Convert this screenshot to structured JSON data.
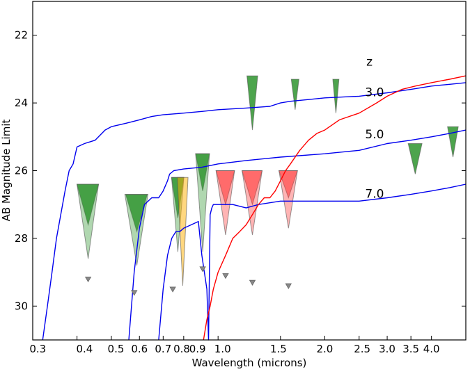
{
  "chart_data": {
    "type": "line",
    "title": "",
    "xlabel": "Wavelength (microns)",
    "ylabel": "AB Magnitude Limit",
    "xscale": "log",
    "xlim": [
      0.3,
      5.0
    ],
    "ylim": [
      31.0,
      21.0
    ],
    "y_inverted": true,
    "grid": false,
    "x_ticks": [
      0.3,
      0.4,
      0.5,
      0.6,
      0.7,
      0.8,
      1.0,
      1.5,
      2.0,
      2.5,
      3.0,
      3.5,
      4.0
    ],
    "x_tick_labels": [
      "0.3",
      "0.4",
      "0.5",
      "0.6",
      "0.7",
      "0.8",
      "0.9",
      "1.0",
      "1.5",
      "2.0",
      "2.5",
      "3.0",
      "3.5",
      "4.0"
    ],
    "x_tick_label_positions": [
      0.31,
      0.42,
      0.515,
      0.6,
      0.7,
      0.79,
      0.875,
      1.03,
      1.48,
      2.0,
      2.55,
      3.0,
      3.5,
      4.0
    ],
    "y_ticks": [
      22,
      24,
      26,
      28,
      30
    ],
    "y_tick_labels": [
      "22",
      "24",
      "26",
      "28",
      "30"
    ],
    "annotations": [
      {
        "text": "z",
        "x": 2.62,
        "y": 22.9
      },
      {
        "text": "3.0",
        "x": 2.6,
        "y": 23.8
      },
      {
        "text": "5.0",
        "x": 2.6,
        "y": 25.05
      },
      {
        "text": "7.0",
        "x": 2.6,
        "y": 26.8
      }
    ],
    "series": [
      {
        "name": "z=3.0",
        "color": "#0000ee",
        "x": [
          0.32,
          0.33,
          0.34,
          0.35,
          0.37,
          0.38,
          0.39,
          0.4,
          0.42,
          0.45,
          0.48,
          0.5,
          0.55,
          0.6,
          0.65,
          0.7,
          0.8,
          0.9,
          1.0,
          1.2,
          1.4,
          1.5,
          1.6,
          1.8,
          2.0,
          2.5,
          3.0,
          3.5,
          4.0,
          4.5,
          5.0
        ],
        "y": [
          31.0,
          30.0,
          29.0,
          28.0,
          26.6,
          26.0,
          25.8,
          25.3,
          25.2,
          25.1,
          24.8,
          24.7,
          24.6,
          24.5,
          24.4,
          24.35,
          24.3,
          24.25,
          24.2,
          24.15,
          24.1,
          24.0,
          23.95,
          23.9,
          23.85,
          23.8,
          23.7,
          23.6,
          23.5,
          23.45,
          23.4
        ]
      },
      {
        "name": "z=5.0",
        "color": "#0000ee",
        "x": [
          0.56,
          0.58,
          0.6,
          0.62,
          0.65,
          0.68,
          0.7,
          0.72,
          0.73,
          0.75,
          0.8,
          0.9,
          1.0,
          1.2,
          1.5,
          2.0,
          2.5,
          3.0,
          3.5,
          4.0,
          4.5,
          5.0
        ],
        "y": [
          31.0,
          29.0,
          27.7,
          27.0,
          26.8,
          26.8,
          26.6,
          26.3,
          26.1,
          26.0,
          25.95,
          25.9,
          25.8,
          25.7,
          25.6,
          25.5,
          25.4,
          25.2,
          25.1,
          25.0,
          24.9,
          24.8
        ]
      },
      {
        "name": "z=7.0",
        "color": "#0000ee",
        "x": [
          0.68,
          0.7,
          0.72,
          0.74,
          0.76,
          0.78,
          0.8,
          0.84,
          0.88,
          0.9,
          0.93,
          0.94,
          0.95,
          0.96,
          0.97,
          0.98,
          1.0,
          1.1,
          1.2,
          1.3,
          1.5,
          2.0,
          2.5,
          3.0,
          3.5,
          4.0,
          4.5,
          5.0
        ],
        "y": [
          31.0,
          29.5,
          28.5,
          28.0,
          27.8,
          27.8,
          27.7,
          27.6,
          27.5,
          28.5,
          29.5,
          31.0,
          27.3,
          27.1,
          27.0,
          27.0,
          27.0,
          27.0,
          27.1,
          27.0,
          26.9,
          26.9,
          26.9,
          26.8,
          26.7,
          26.6,
          26.5,
          26.4
        ]
      },
      {
        "name": "red spectrum",
        "color": "#ff0000",
        "x": [
          0.91,
          0.93,
          0.95,
          0.97,
          1.0,
          1.05,
          1.1,
          1.15,
          1.2,
          1.25,
          1.3,
          1.35,
          1.4,
          1.45,
          1.5,
          1.55,
          1.6,
          1.7,
          1.8,
          1.9,
          2.0,
          2.2,
          2.5,
          2.8,
          3.0,
          3.3,
          3.6,
          4.0,
          4.5,
          5.0
        ],
        "y": [
          31.0,
          30.4,
          30.0,
          29.5,
          29.0,
          28.5,
          28.0,
          27.8,
          27.6,
          27.3,
          27.0,
          26.8,
          26.8,
          26.6,
          26.3,
          26.0,
          25.8,
          25.4,
          25.1,
          24.9,
          24.8,
          24.5,
          24.3,
          24.0,
          23.8,
          23.6,
          23.5,
          23.4,
          23.3,
          23.2
        ]
      }
    ],
    "large_triangles": [
      {
        "x": 0.43,
        "y_top": 26.4,
        "y_bottom": 27.6,
        "hw": 0.07,
        "fill": "#3a9a3a",
        "alpha": 0.9
      },
      {
        "x": 0.43,
        "y_top": 26.4,
        "y_bottom": 28.6,
        "hw": 0.07,
        "fill": "#3a9a3a",
        "alpha": 0.4
      },
      {
        "x": 0.59,
        "y_top": 26.7,
        "y_bottom": 27.8,
        "hw": 0.07,
        "fill": "#3a9a3a",
        "alpha": 0.9
      },
      {
        "x": 0.59,
        "y_top": 26.7,
        "y_bottom": 28.8,
        "hw": 0.075,
        "fill": "#3a9a3a",
        "alpha": 0.4
      },
      {
        "x": 0.77,
        "y_top": 26.2,
        "y_bottom": 27.4,
        "hw": 0.04,
        "fill": "#3a9a3a",
        "alpha": 0.9
      },
      {
        "x": 0.77,
        "y_top": 26.2,
        "y_bottom": 28.4,
        "hw": 0.04,
        "fill": "#3a9a3a",
        "alpha": 0.4
      },
      {
        "x": 0.795,
        "y_top": 26.2,
        "y_bottom": 29.4,
        "hw": 0.035,
        "fill": "#ffb000",
        "alpha": 0.5
      },
      {
        "x": 0.905,
        "y_top": 25.5,
        "y_bottom": 26.6,
        "hw": 0.045,
        "fill": "#3a9a3a",
        "alpha": 0.9
      },
      {
        "x": 0.905,
        "y_top": 25.5,
        "y_bottom": 28.4,
        "hw": 0.045,
        "fill": "#3a9a3a",
        "alpha": 0.4
      },
      {
        "x": 1.05,
        "y_top": 26.0,
        "y_bottom": 27.0,
        "hw": 0.06,
        "fill": "#ff4444",
        "alpha": 0.65
      },
      {
        "x": 1.05,
        "y_top": 26.0,
        "y_bottom": 27.9,
        "hw": 0.06,
        "fill": "#ff4444",
        "alpha": 0.4
      },
      {
        "x": 1.25,
        "y_top": 26.0,
        "y_bottom": 27.0,
        "hw": 0.065,
        "fill": "#ff4444",
        "alpha": 0.65
      },
      {
        "x": 1.25,
        "y_top": 26.0,
        "y_bottom": 27.9,
        "hw": 0.065,
        "fill": "#ff4444",
        "alpha": 0.4
      },
      {
        "x": 1.58,
        "y_top": 26.0,
        "y_bottom": 26.8,
        "hw": 0.06,
        "fill": "#ff4444",
        "alpha": 0.65
      },
      {
        "x": 1.58,
        "y_top": 26.0,
        "y_bottom": 27.7,
        "hw": 0.06,
        "fill": "#ff4444",
        "alpha": 0.4
      },
      {
        "x": 1.25,
        "y_top": 23.2,
        "y_bottom": 24.8,
        "hw": 0.035,
        "fill": "#3a9a3a",
        "alpha": 0.9
      },
      {
        "x": 1.65,
        "y_top": 23.3,
        "y_bottom": 24.2,
        "hw": 0.025,
        "fill": "#3a9a3a",
        "alpha": 0.9
      },
      {
        "x": 2.15,
        "y_top": 23.3,
        "y_bottom": 24.3,
        "hw": 0.02,
        "fill": "#3a9a3a",
        "alpha": 0.9
      },
      {
        "x": 3.6,
        "y_top": 25.2,
        "y_bottom": 26.1,
        "hw": 0.045,
        "fill": "#3a9a3a",
        "alpha": 0.9
      },
      {
        "x": 4.6,
        "y_top": 24.7,
        "y_bottom": 25.6,
        "hw": 0.035,
        "fill": "#3a9a3a",
        "alpha": 0.9
      }
    ],
    "small_markers": [
      {
        "x": 0.43,
        "y": 29.2
      },
      {
        "x": 0.58,
        "y": 29.6
      },
      {
        "x": 0.745,
        "y": 29.5
      },
      {
        "x": 0.905,
        "y": 28.9
      },
      {
        "x": 1.05,
        "y": 29.1
      },
      {
        "x": 1.25,
        "y": 29.3
      },
      {
        "x": 1.58,
        "y": 29.4
      }
    ]
  }
}
